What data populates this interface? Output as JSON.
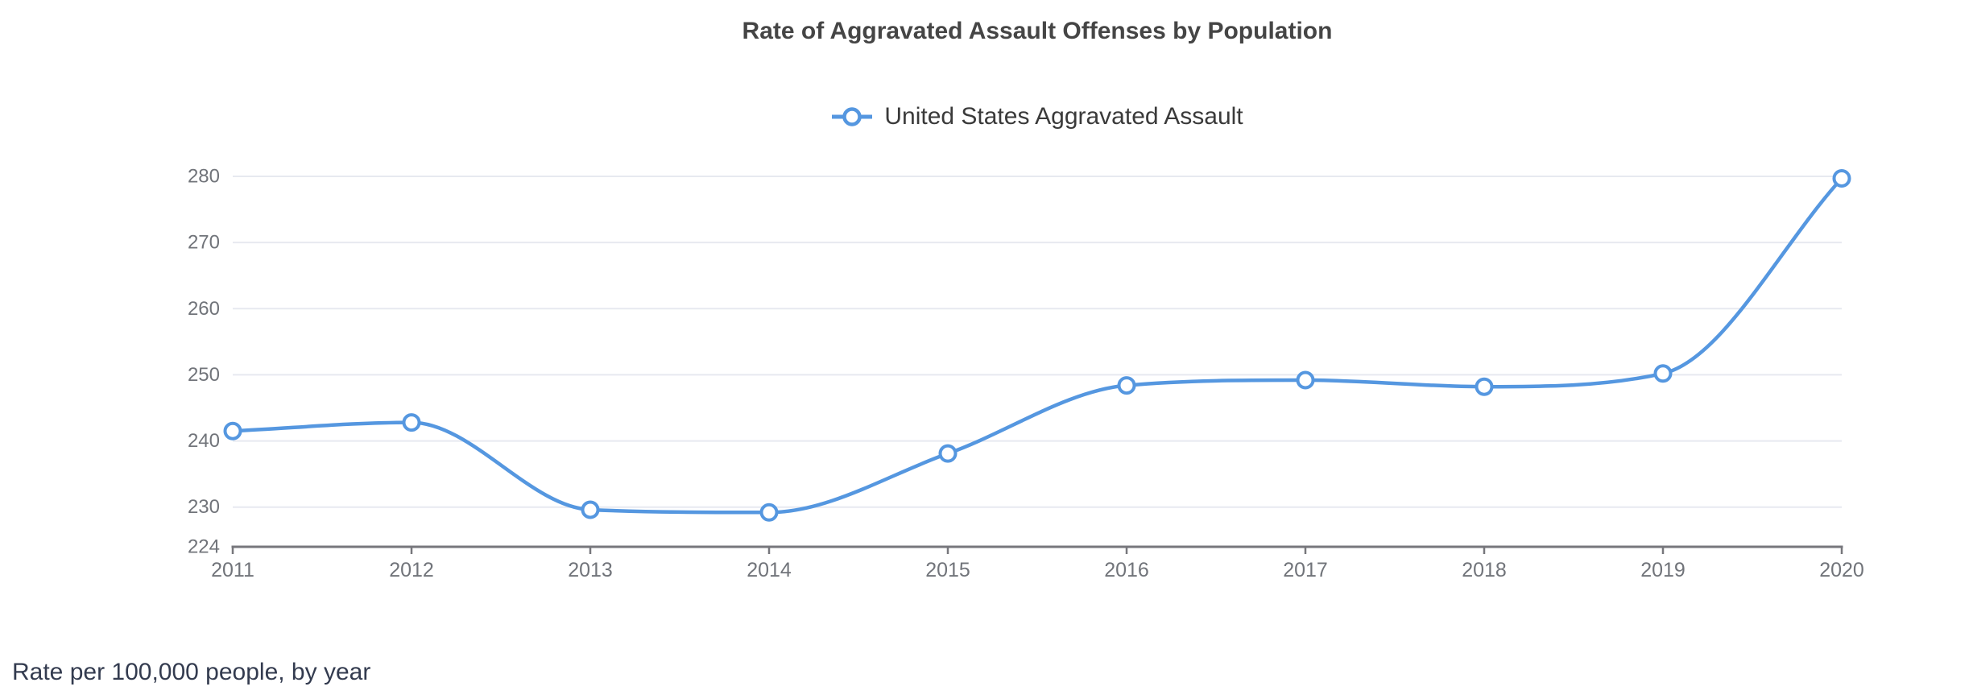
{
  "chart_data": {
    "type": "line",
    "title": "Rate of Aggravated Assault Offenses by Population",
    "footnote": "Rate per 100,000 people, by year",
    "legend": [
      {
        "label": "United States Aggravated Assault"
      }
    ],
    "legend_position": "top-center",
    "x": [
      2011,
      2012,
      2013,
      2014,
      2015,
      2016,
      2017,
      2018,
      2019,
      2020
    ],
    "series": [
      {
        "name": "United States Aggravated Assault",
        "values": [
          241.5,
          242.8,
          229.6,
          229.2,
          238.1,
          248.4,
          249.2,
          248.2,
          250.2,
          279.7
        ]
      }
    ],
    "yticks": [
      224,
      230,
      240,
      250,
      260,
      270,
      280
    ],
    "ylim": [
      224,
      280
    ],
    "xlabel": "",
    "ylabel": "",
    "grid": "horizontal",
    "curve": "monotone",
    "colors": {
      "line": "#5597e0",
      "marker_fill": "#ffffff",
      "grid": "#e7e9f0",
      "axis": "#77777c",
      "tick_label": "#71747a",
      "title": "#454545",
      "legend_text": "#3a3a3a",
      "footnote": "#333b4f"
    }
  }
}
